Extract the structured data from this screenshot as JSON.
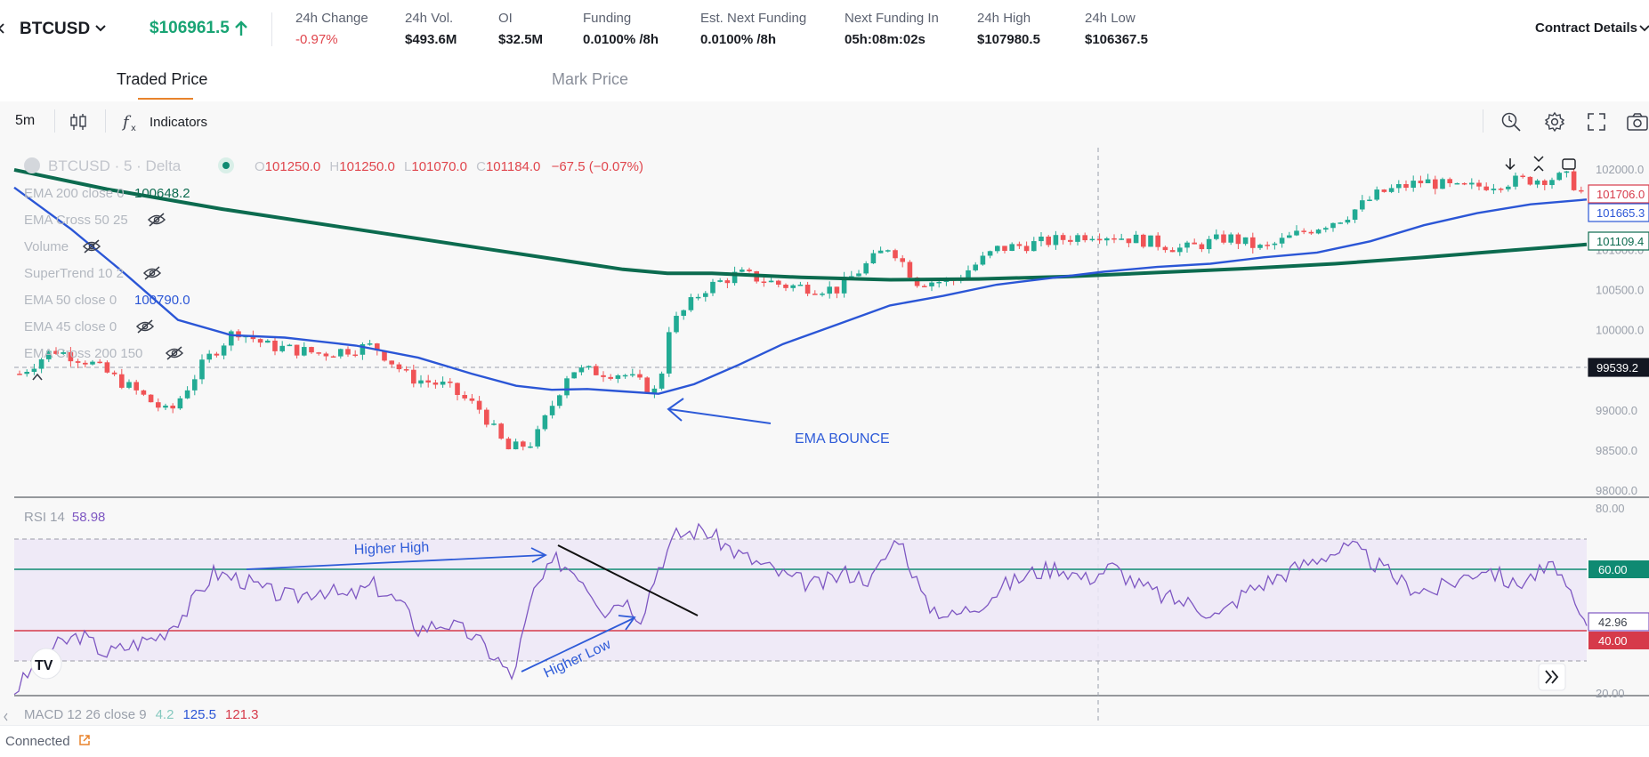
{
  "header": {
    "symbol": "BTCUSD",
    "price": "$106961.5",
    "stats": [
      {
        "label": "24h Change",
        "value": "-0.97%",
        "negative": true
      },
      {
        "label": "24h Vol.",
        "value": "$493.6M"
      },
      {
        "label": "OI",
        "value": "$32.5M"
      },
      {
        "label": "Funding",
        "value": "0.0100% /8h"
      },
      {
        "label": "Est. Next Funding",
        "value": "0.0100% /8h"
      },
      {
        "label": "Next Funding In",
        "value": "05h:08m:02s"
      },
      {
        "label": "24h High",
        "value": "$107980.5"
      },
      {
        "label": "24h Low",
        "value": "$106367.5"
      }
    ],
    "contract_details": "Contract Details"
  },
  "tabs": [
    {
      "label": "Traded Price",
      "active": true
    },
    {
      "label": "Mark Price",
      "active": false
    }
  ],
  "toolbar": {
    "interval": "5m",
    "indicators_label": "Indicators",
    "left_icons": [
      "candle-type-icon",
      "function-icon"
    ],
    "right_icons": [
      "alert-icon",
      "settings-icon",
      "fullscreen-icon",
      "camera-icon"
    ]
  },
  "legend": {
    "title": "BTCUSD · 5 · Delta",
    "o_label": "O",
    "o": "101250.0",
    "h_label": "H",
    "h": "101250.0",
    "l_label": "L",
    "l": "101070.0",
    "c_label": "C",
    "c": "101184.0",
    "change": "−67.5 (−0.07%)",
    "indicators": [
      {
        "label": "EMA 200 close 0",
        "value": "100648.2",
        "value_color": "#0c6b4f",
        "hidden": false
      },
      {
        "label": "EMA Cross 50 25",
        "value": "",
        "hidden": true
      },
      {
        "label": "Volume",
        "value": "",
        "hidden": true
      },
      {
        "label": "SuperTrend 10 2",
        "value": "",
        "hidden": true
      },
      {
        "label": "EMA 50 close 0",
        "value": "100790.0",
        "value_color": "#2b56d6",
        "hidden": false
      },
      {
        "label": "EMA 45 close 0",
        "value": "",
        "hidden": true
      },
      {
        "label": "EMA Cross 200 150",
        "value": "",
        "hidden": true
      }
    ]
  },
  "price_axis": {
    "ticks": [
      "102000.0",
      "101500.0",
      "101000.0",
      "100500.0",
      "100000.0",
      "99500.0",
      "99000.0",
      "98500.0",
      "98000.0"
    ],
    "labels": [
      {
        "text": "101706.0",
        "style": "red-outline"
      },
      {
        "text": "101665.3",
        "style": "blue-outline"
      },
      {
        "text": "101109.4",
        "style": "green-outline"
      },
      {
        "text": "99539.2",
        "style": "crosshair"
      }
    ]
  },
  "rsi": {
    "label": "RSI 14",
    "value": "58.98",
    "ticks": [
      "80.00",
      "20.00"
    ],
    "level_labels": [
      {
        "text": "60.00",
        "style": "green"
      },
      {
        "text": "42.96",
        "style": "outline"
      },
      {
        "text": "40.00",
        "style": "red"
      }
    ]
  },
  "macd": {
    "label": "MACD 12 26 close 9",
    "v1": "4.2",
    "v2": "125.5",
    "v3": "121.3"
  },
  "annotations": {
    "ema_bounce": "EMA BOUNCE",
    "higher_high": "Higher High",
    "higher_low": "Higher Low"
  },
  "colors": {
    "up": "#22ab94",
    "down": "#f05356",
    "ema200": "#0c6b4f",
    "ema50": "#2b56d6",
    "rsi": "#7e57c2",
    "accent": "#e8832c",
    "price_up": "#19a474",
    "annot": "#2e5bd8"
  },
  "chart_data": {
    "type": "candlestick",
    "price_range": [
      98000,
      102100
    ],
    "candles_approx_count": 150,
    "rsi_range": [
      20,
      80
    ],
    "rsi_levels": [
      60,
      40
    ]
  },
  "status": {
    "text": "Connected"
  }
}
